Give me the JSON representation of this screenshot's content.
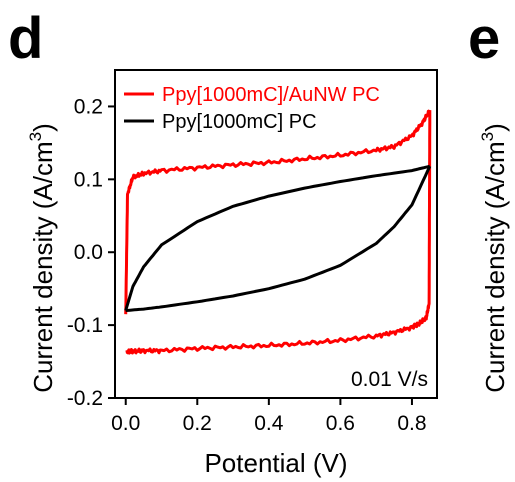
{
  "panels": [
    "d",
    "e"
  ],
  "right_panel_ylabel": "Current density (A/cm",
  "right_panel_ylabel_sup": "3",
  "right_panel_ylabel_close": ")",
  "chart_data": {
    "type": "line",
    "xlabel": "Potential (V)",
    "ylabel": "Current density (A/cm",
    "ylabel_sup": "3",
    "ylabel_close": ")",
    "xlim": [
      -0.03,
      0.87
    ],
    "ylim": [
      -0.2,
      0.25
    ],
    "xticks": [
      0.0,
      0.2,
      0.4,
      0.6,
      0.8
    ],
    "xtick_labels": [
      "0.0",
      "0.2",
      "0.4",
      "0.6",
      "0.8"
    ],
    "yticks": [
      -0.2,
      -0.1,
      0.0,
      0.1,
      0.2
    ],
    "ytick_labels": [
      "-0.2",
      "-0.1",
      "0.0",
      "0.1",
      "0.2"
    ],
    "annotation": "0.01 V/s",
    "legend_position": "top-left",
    "grid": false,
    "series": [
      {
        "name": "Ppy[1000mC]/AuNW PC",
        "color": "#ff0000",
        "forward": {
          "x": [
            0.0,
            0.005,
            0.02,
            0.05,
            0.1,
            0.2,
            0.3,
            0.4,
            0.5,
            0.6,
            0.7,
            0.75,
            0.8,
            0.83,
            0.85
          ],
          "y": [
            -0.085,
            0.08,
            0.103,
            0.108,
            0.112,
            0.116,
            0.12,
            0.123,
            0.128,
            0.133,
            0.14,
            0.145,
            0.16,
            0.178,
            0.195
          ]
        },
        "reverse": {
          "x": [
            0.85,
            0.848,
            0.84,
            0.82,
            0.8,
            0.75,
            0.7,
            0.6,
            0.5,
            0.4,
            0.3,
            0.2,
            0.1,
            0.05,
            0.02,
            0.0
          ],
          "y": [
            0.195,
            -0.07,
            -0.09,
            -0.098,
            -0.103,
            -0.11,
            -0.115,
            -0.121,
            -0.125,
            -0.128,
            -0.13,
            -0.132,
            -0.135,
            -0.135,
            -0.136,
            -0.137
          ]
        }
      },
      {
        "name": "Ppy[1000mC] PC",
        "color": "#000000",
        "forward": {
          "x": [
            0.0,
            0.02,
            0.05,
            0.1,
            0.2,
            0.3,
            0.4,
            0.5,
            0.6,
            0.7,
            0.8,
            0.85
          ],
          "y": [
            -0.08,
            -0.047,
            -0.02,
            0.01,
            0.042,
            0.063,
            0.077,
            0.088,
            0.097,
            0.105,
            0.112,
            0.118
          ]
        },
        "reverse": {
          "x": [
            0.85,
            0.8,
            0.75,
            0.7,
            0.6,
            0.5,
            0.4,
            0.3,
            0.2,
            0.1,
            0.05,
            0.0
          ],
          "y": [
            0.118,
            0.065,
            0.035,
            0.012,
            -0.018,
            -0.037,
            -0.05,
            -0.06,
            -0.068,
            -0.075,
            -0.078,
            -0.08
          ]
        }
      }
    ]
  }
}
